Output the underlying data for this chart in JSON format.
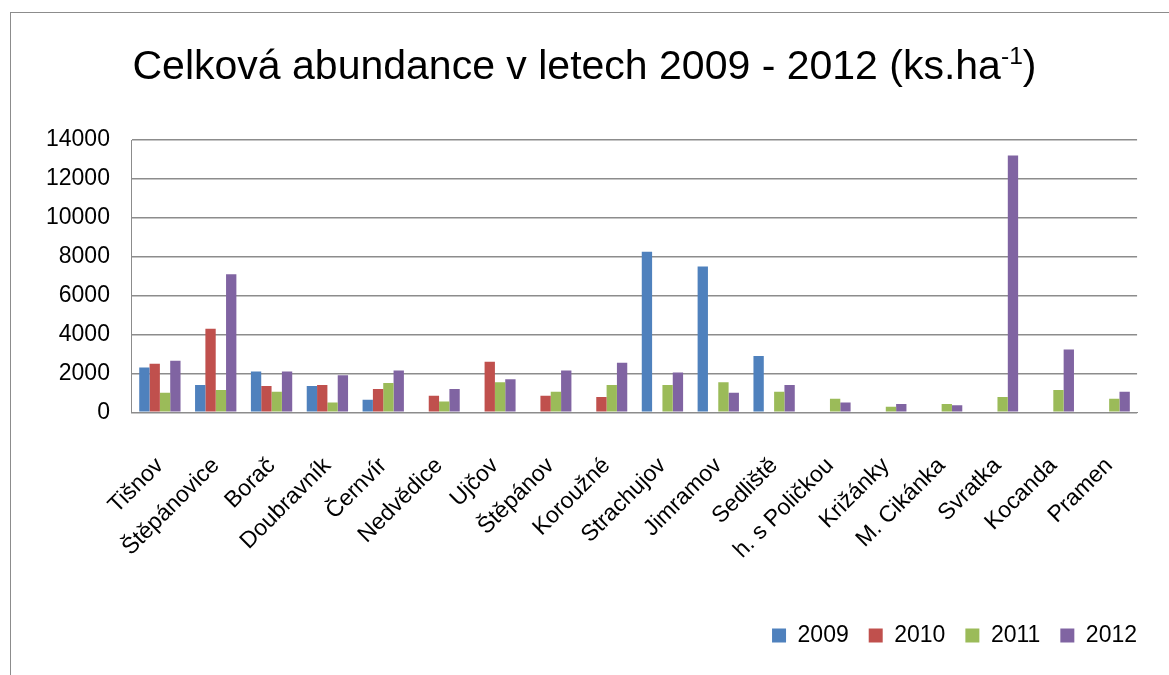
{
  "chart_data": {
    "type": "bar",
    "title": "Celková abundance v letech 2009 - 2012 (ks.ha$^{-1}$)",
    "categories": [
      "Tišnov",
      "Štěpánovice",
      "Borač",
      "Doubravník",
      "Černvír",
      "Nedvědice",
      "Ujčov",
      "Štěpánov",
      "Koroužné",
      "Strachujov",
      "Jimramov",
      "Sedliště",
      "h. s Poličkou",
      "Križánky",
      "M. Cikánka",
      "Svratka",
      "Kocanda",
      "Pramen"
    ],
    "series": [
      {
        "name": "2009",
        "color": "#4f81bd",
        "values": [
          2300,
          1400,
          2100,
          1350,
          650,
          null,
          null,
          null,
          null,
          8250,
          7500,
          2900,
          null,
          null,
          null,
          null,
          null,
          null
        ]
      },
      {
        "name": "2010",
        "color": "#c0504d",
        "values": [
          2500,
          4300,
          1350,
          1400,
          1200,
          850,
          2600,
          850,
          780,
          null,
          null,
          null,
          null,
          null,
          null,
          null,
          null,
          null
        ]
      },
      {
        "name": "2011",
        "color": "#9bbb59",
        "values": [
          1000,
          1150,
          1050,
          500,
          1500,
          550,
          1550,
          1050,
          1400,
          1400,
          1550,
          1050,
          700,
          280,
          430,
          780,
          1150,
          700
        ]
      },
      {
        "name": "2012",
        "color": "#8064a2",
        "values": [
          2650,
          7100,
          2100,
          1900,
          2150,
          1200,
          1700,
          2150,
          2550,
          2050,
          1000,
          1400,
          500,
          430,
          360,
          13200,
          3230,
          1050
        ]
      }
    ],
    "ylim": [
      0,
      14000
    ],
    "yticks": [
      0,
      2000,
      4000,
      6000,
      8000,
      10000,
      12000,
      14000
    ],
    "grid": "y",
    "legend": "bottom right"
  }
}
